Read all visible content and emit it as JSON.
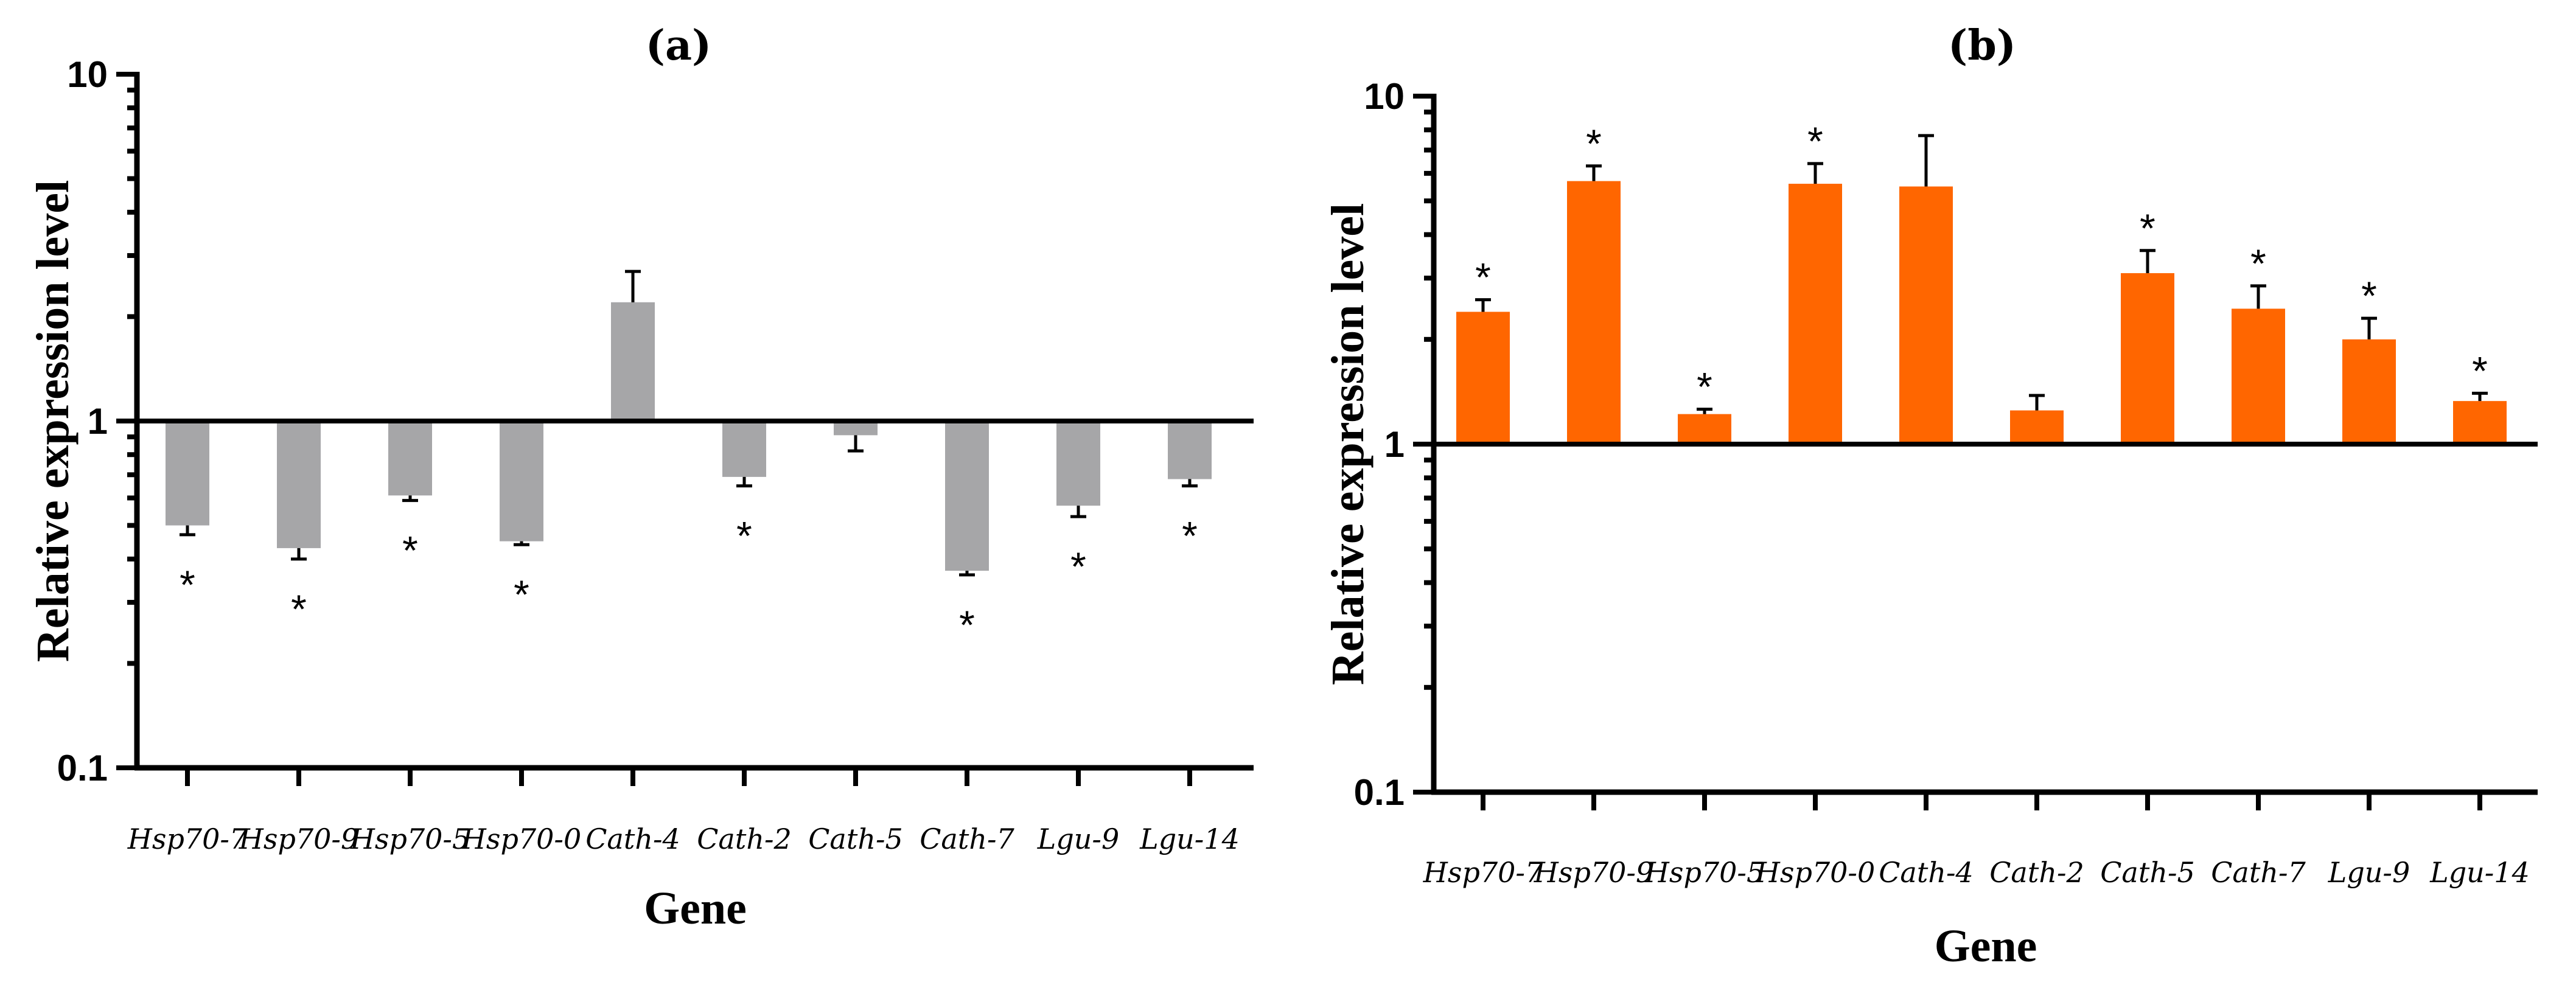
{
  "chart_data": [
    {
      "panel": "(a)",
      "type": "bar",
      "title": "(a)",
      "xlabel": "Gene",
      "ylabel": "Relative expression level",
      "yscale": "log",
      "ylim": [
        0.1,
        10
      ],
      "yticks": [
        "0.1",
        "1",
        "10"
      ],
      "baseline": 1,
      "color": "#a6a6a8",
      "categories": [
        "Hsp70-7",
        "Hsp70-9",
        "Hsp70-5",
        "Hsp70-0",
        "Cath-4",
        "Cath-2",
        "Cath-5",
        "Cath-7",
        "Lgu-9",
        "Lgu-14"
      ],
      "values": [
        0.5,
        0.43,
        0.61,
        0.45,
        2.2,
        0.69,
        0.91,
        0.37,
        0.57,
        0.68
      ],
      "errors": [
        0.03,
        0.03,
        0.02,
        0.01,
        0.5,
        0.04,
        0.09,
        0.01,
        0.04,
        0.03
      ],
      "significant": [
        true,
        true,
        true,
        true,
        false,
        true,
        false,
        true,
        true,
        true
      ],
      "star_label": "*"
    },
    {
      "panel": "(b)",
      "type": "bar",
      "title": "(b)",
      "xlabel": "Gene",
      "ylabel": "Relative expression level",
      "yscale": "log",
      "ylim": [
        0.1,
        10
      ],
      "yticks": [
        "0.1",
        "1",
        "10"
      ],
      "baseline": 1,
      "color": "#ff6600",
      "categories": [
        "Hsp70-7",
        "Hsp70-9",
        "Hsp70-5",
        "Hsp70-0",
        "Cath-4",
        "Cath-2",
        "Cath-5",
        "Cath-7",
        "Lgu-9",
        "Lgu-14"
      ],
      "values": [
        2.4,
        5.7,
        1.22,
        5.6,
        5.5,
        1.25,
        3.1,
        2.45,
        2.0,
        1.33
      ],
      "errors": [
        0.2,
        0.6,
        0.04,
        0.8,
        2.2,
        0.13,
        0.5,
        0.4,
        0.3,
        0.07
      ],
      "significant": [
        true,
        true,
        true,
        true,
        false,
        false,
        true,
        true,
        true,
        true
      ],
      "star_label": "*"
    }
  ]
}
